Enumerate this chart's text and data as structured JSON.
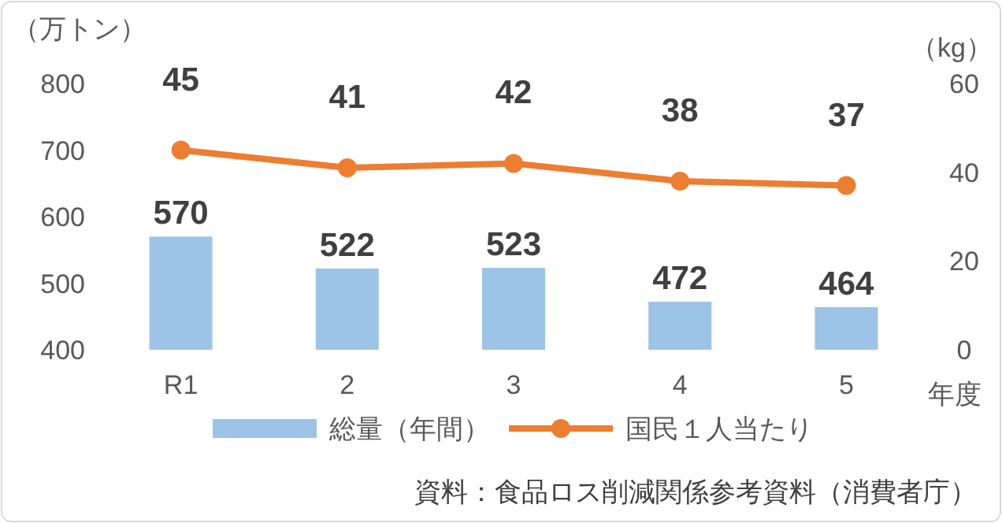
{
  "chart_data": {
    "type": "bar",
    "categories": [
      "R1",
      "2",
      "3",
      "4",
      "5"
    ],
    "series": [
      {
        "name": "総量（年間）",
        "color": "#9dc3e6",
        "values": [
          570,
          522,
          523,
          472,
          464
        ]
      },
      {
        "name": "国民１人当たり",
        "type": "line",
        "axis": "y2",
        "color": "#ed7d31",
        "values": [
          45,
          41,
          42,
          38,
          37
        ]
      }
    ],
    "marker": "circle",
    "ylim": [
      400,
      800
    ],
    "yticks": [
      400,
      500,
      600,
      700,
      800
    ],
    "y2lim": [
      0,
      60
    ],
    "y2ticks": [
      0,
      20,
      40,
      60
    ],
    "ylabel": "（万トン）",
    "y2label": "（kg）",
    "xlabel": "年度",
    "legend": "bottom",
    "data_labels": true,
    "grid": false,
    "annotations": [
      "資料：食品ロス削減関係参考資料（消費者庁）"
    ]
  }
}
